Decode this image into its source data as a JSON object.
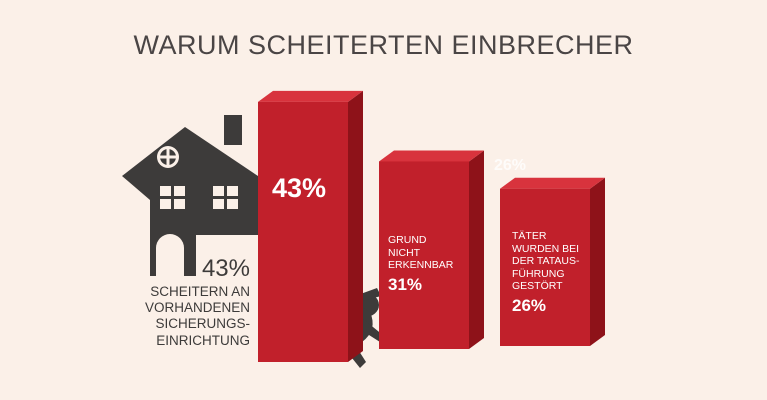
{
  "chart_data": {
    "type": "bar3d",
    "title": "WARUM SCHEITERTEN EINBRECHER",
    "categories": [
      "SCHEITERN AN VORHANDENEN SICHERUNGS-EINRICHTUNG",
      "GRUND NICHT ERKENNBAR",
      "TÄTER WURDEN BEI DER TATAUS-FÜHRUNG GESTÖRT"
    ],
    "values": [
      43,
      31,
      26
    ],
    "value_labels": [
      "43%",
      "31%",
      "26%"
    ],
    "color": "#c1202b"
  }
}
